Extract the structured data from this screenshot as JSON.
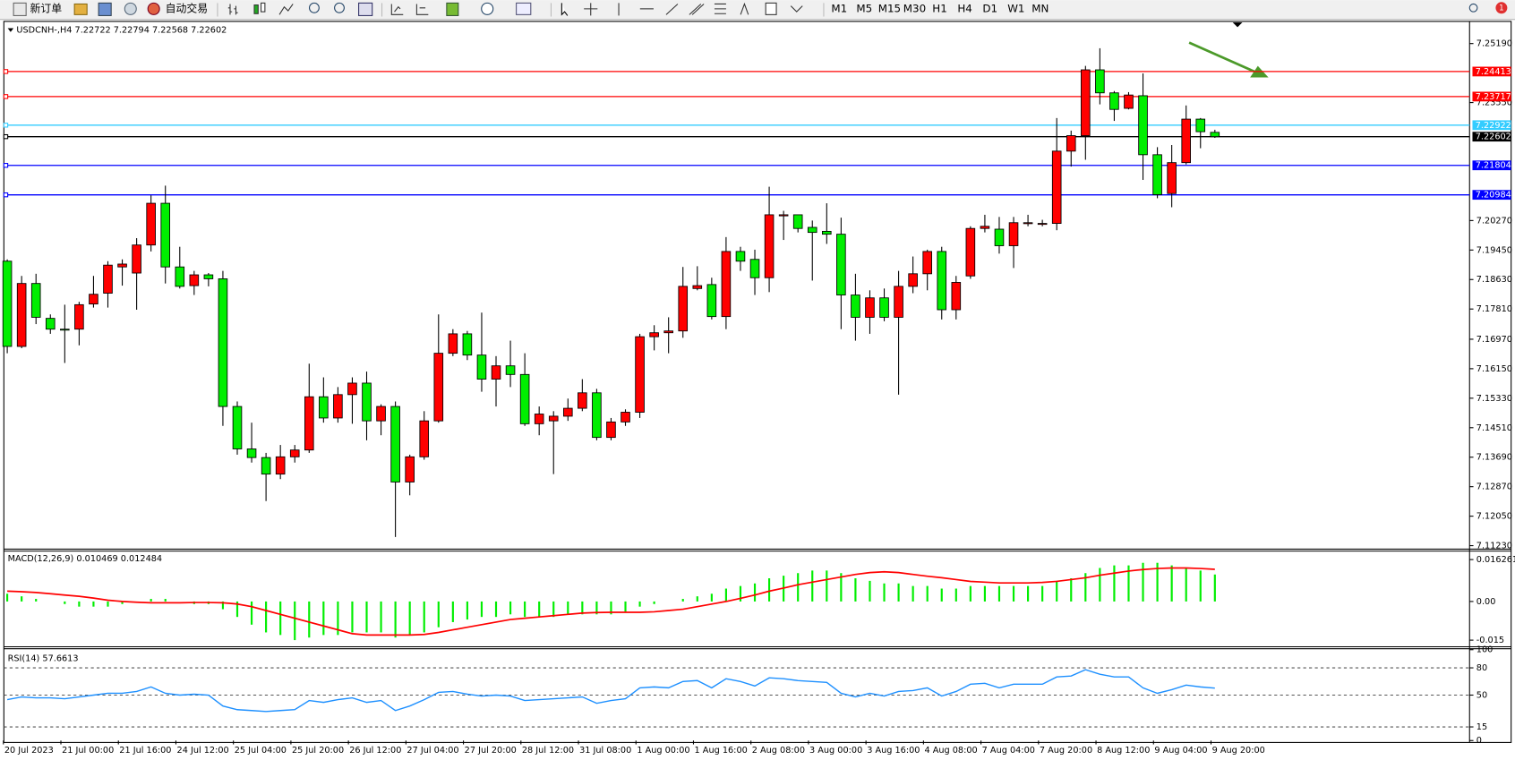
{
  "toolbar": {
    "new_order": "新订单",
    "auto_trading": "自动交易",
    "timeframes": [
      "M1",
      "M5",
      "M15",
      "M30",
      "H1",
      "H4",
      "D1",
      "W1",
      "MN"
    ],
    "alerts": 1
  },
  "chart_data": [
    {
      "type": "candlestick",
      "title": "USDCNH-,H4 7.22722 7.22794 7.22568 7.22602",
      "categories": [
        "20 Jul 2023",
        null,
        null,
        null,
        "21 Jul 00:00",
        null,
        null,
        null,
        "21 Jul 16:00",
        null,
        null,
        null,
        "24 Jul 12:00",
        null,
        null,
        null,
        "25 Jul 04:00",
        null,
        null,
        null,
        "25 Jul 20:00",
        null,
        null,
        null,
        "26 Jul 12:00",
        null,
        null,
        null,
        "27 Jul 04:00",
        null,
        null,
        null,
        "27 Jul 20:00",
        null,
        null,
        null,
        "28 Jul 12:00",
        null,
        null,
        null,
        "31 Jul 08:00",
        null,
        null,
        null,
        "1 Aug 00:00",
        null,
        null,
        null,
        "1 Aug 16:00",
        null,
        null,
        null,
        "2 Aug 08:00",
        null,
        null,
        null,
        "3 Aug 00:00",
        null,
        null,
        null,
        "3 Aug 16:00",
        null,
        null,
        null,
        "4 Aug 08:00",
        null,
        null,
        null,
        "7 Aug 04:00",
        null,
        null,
        null,
        "7 Aug 20:00",
        null,
        null,
        null,
        "8 Aug 12:00",
        null,
        null,
        null,
        "9 Aug 04:00",
        null,
        null,
        null,
        "9 Aug 20:00"
      ],
      "open": [
        7.1914,
        7.1677,
        7.1852,
        7.1755,
        7.1725,
        7.1725,
        7.1795,
        7.1825,
        7.1898,
        7.1881,
        7.1959,
        7.2075,
        7.1898,
        7.1846,
        7.1876,
        7.1865,
        7.151,
        7.1392,
        7.1368,
        7.1322,
        7.137,
        7.1389,
        7.1537,
        7.1478,
        7.1543,
        7.1575,
        7.147,
        7.151,
        7.13,
        7.137,
        7.147,
        7.1658,
        7.1712,
        7.1653,
        7.1586,
        7.1623,
        7.1599,
        7.1462,
        7.147,
        7.1483,
        7.1505,
        7.1548,
        7.1424,
        7.1467,
        7.1494,
        7.1704,
        7.1715,
        7.172,
        7.1838,
        7.1849,
        7.176,
        7.1941,
        7.1919,
        7.1868,
        7.204,
        7.2043,
        7.2008,
        7.1997,
        7.1989,
        7.182,
        7.1758,
        7.1812,
        7.1758,
        7.1844,
        7.1879,
        7.1941,
        7.1779,
        7.1873,
        7.2005,
        7.2003,
        7.1957,
        7.2019,
        7.2019,
        7.2019,
        7.222,
        7.2263,
        7.2446,
        7.2382,
        7.2339,
        7.2374,
        7.221,
        7.2102,
        7.2188,
        7.2309,
        7.22722
      ],
      "high": [
        7.1919,
        7.1873,
        7.1879,
        7.1766,
        7.1793,
        7.1801,
        7.1873,
        7.1914,
        7.1919,
        7.1978,
        7.2097,
        7.2124,
        7.1954,
        7.1887,
        7.1881,
        7.1887,
        7.1524,
        7.1465,
        7.1381,
        7.1403,
        7.1403,
        7.1629,
        7.1591,
        7.1564,
        7.1591,
        7.1607,
        7.1516,
        7.1524,
        7.1376,
        7.1497,
        7.1766,
        7.1725,
        7.172,
        7.1771,
        7.165,
        7.1693,
        7.1658,
        7.151,
        7.1497,
        7.1532,
        7.1586,
        7.1559,
        7.1478,
        7.1502,
        7.1712,
        7.1736,
        7.1758,
        7.1898,
        7.19,
        7.1868,
        7.1981,
        7.1954,
        7.1946,
        7.2121,
        7.2054,
        7.2043,
        7.2027,
        7.2075,
        7.2035,
        7.1879,
        7.1833,
        7.1838,
        7.1887,
        7.1927,
        7.1946,
        7.1954,
        7.1873,
        7.2011,
        7.2043,
        7.2037,
        7.2037,
        7.2043,
        7.2029,
        7.2312,
        7.2277,
        7.2457,
        7.2506,
        7.2387,
        7.2384,
        7.2436,
        7.2231,
        7.2237,
        7.2347,
        7.2312,
        7.22794
      ],
      "low": [
        7.1658,
        7.1672,
        7.1739,
        7.1712,
        7.1631,
        7.168,
        7.1785,
        7.1785,
        7.1846,
        7.1779,
        7.1941,
        7.1852,
        7.1838,
        7.182,
        7.1844,
        7.1456,
        7.1376,
        7.1354,
        7.1247,
        7.1308,
        7.1354,
        7.1381,
        7.1465,
        7.1465,
        7.1462,
        7.1416,
        7.143,
        7.1147,
        7.1263,
        7.1362,
        7.1465,
        7.165,
        7.1639,
        7.1551,
        7.151,
        7.1564,
        7.1456,
        7.143,
        7.1322,
        7.147,
        7.1497,
        7.1416,
        7.1416,
        7.1456,
        7.1478,
        7.1666,
        7.1658,
        7.1701,
        7.1833,
        7.1752,
        7.1725,
        7.1887,
        7.182,
        7.1828,
        7.1973,
        7.1994,
        7.186,
        7.1962,
        7.1725,
        7.1693,
        7.1712,
        7.1747,
        7.1543,
        7.1825,
        7.1833,
        7.1752,
        7.1752,
        7.1865,
        7.1994,
        7.1935,
        7.1895,
        7.2011,
        7.2011,
        7.2,
        7.2177,
        7.2196,
        7.235,
        7.2304,
        7.2336,
        7.214,
        7.2089,
        7.2064,
        7.2183,
        7.2228,
        7.22568
      ],
      "close": [
        7.1677,
        7.1852,
        7.1758,
        7.1725,
        7.1723,
        7.1793,
        7.1822,
        7.1903,
        7.1906,
        7.1959,
        7.2075,
        7.1898,
        7.1844,
        7.1876,
        7.1865,
        7.151,
        7.1392,
        7.1368,
        7.1322,
        7.137,
        7.1389,
        7.1537,
        7.1478,
        7.1543,
        7.1575,
        7.147,
        7.151,
        7.13,
        7.137,
        7.147,
        7.1658,
        7.1712,
        7.1653,
        7.1586,
        7.1623,
        7.1599,
        7.1462,
        7.1489,
        7.1483,
        7.1505,
        7.1548,
        7.1424,
        7.1467,
        7.1494,
        7.1704,
        7.1715,
        7.172,
        7.1844,
        7.1846,
        7.176,
        7.1941,
        7.1914,
        7.1868,
        7.2043,
        7.2043,
        7.2005,
        7.1994,
        7.1989,
        7.182,
        7.1758,
        7.1812,
        7.1758,
        7.1844,
        7.1879,
        7.1941,
        7.1779,
        7.1855,
        7.2005,
        7.2011,
        7.1957,
        7.2021,
        7.2021,
        7.2019,
        7.222,
        7.2263,
        7.2446,
        7.2382,
        7.2336,
        7.2376,
        7.221,
        7.2099,
        7.2188,
        7.2309,
        7.2274,
        7.22602
      ],
      "up_color": "#ff0000",
      "down_color": "#00ee00",
      "ylim": [
        7.1116,
        7.2578
      ],
      "yticks": [
        {
          "value": 7.2519,
          "label": "7.25190"
        },
        {
          "value": 7.2355,
          "label": "7.23550"
        },
        {
          "value": 7.2027,
          "label": "7.20270"
        },
        {
          "value": 7.1945,
          "label": "7.19450"
        },
        {
          "value": 7.1863,
          "label": "7.18630"
        },
        {
          "value": 7.1781,
          "label": "7.17810"
        },
        {
          "value": 7.1697,
          "label": "7.16970"
        },
        {
          "value": 7.1615,
          "label": "7.16150"
        },
        {
          "value": 7.1533,
          "label": "7.15330"
        },
        {
          "value": 7.1451,
          "label": "7.14510"
        },
        {
          "value": 7.1369,
          "label": "7.13690"
        },
        {
          "value": 7.1287,
          "label": "7.12870"
        },
        {
          "value": 7.1205,
          "label": "7.12050"
        },
        {
          "value": 7.1123,
          "label": "7.11230"
        }
      ],
      "levels": [
        {
          "value": 7.24413,
          "color": "#ff0000"
        },
        {
          "value": 7.23717,
          "color": "#ff0000"
        },
        {
          "value": 7.22922,
          "color": "#33ccff"
        },
        {
          "value": 7.22602,
          "color": "#000000"
        },
        {
          "value": 7.21804,
          "color": "#0000ff"
        },
        {
          "value": 7.20984,
          "color": "#0000ff"
        }
      ]
    },
    {
      "type": "macd",
      "title": "MACD(12,26,9) 0.010469 0.012484",
      "histogram": {
        "color": "#00ee00",
        "values": [
          0.003,
          0.002,
          0.001,
          0,
          -0.001,
          -0.002,
          -0.002,
          -0.002,
          -0.001,
          0,
          0.001,
          0.001,
          0,
          -0.001,
          -0.001,
          -0.003,
          -0.006,
          -0.009,
          -0.012,
          -0.013,
          -0.015,
          -0.014,
          -0.013,
          -0.013,
          -0.012,
          -0.012,
          -0.012,
          -0.014,
          -0.013,
          -0.012,
          -0.01,
          -0.008,
          -0.007,
          -0.006,
          -0.006,
          -0.005,
          -0.006,
          -0.006,
          -0.006,
          -0.005,
          -0.005,
          -0.005,
          -0.005,
          -0.004,
          -0.002,
          -0.001,
          0,
          0.001,
          0.002,
          0.003,
          0.005,
          0.006,
          0.007,
          0.009,
          0.01,
          0.011,
          0.012,
          0.012,
          0.011,
          0.009,
          0.008,
          0.007,
          0.007,
          0.006,
          0.006,
          0.005,
          0.005,
          0.006,
          0.006,
          0.006,
          0.006,
          0.006,
          0.006,
          0.008,
          0.009,
          0.011,
          0.013,
          0.014,
          0.014,
          0.015,
          0.015,
          0.014,
          0.013,
          0.012,
          0.010469
        ]
      },
      "signal": {
        "color": "#ff0000",
        "values": [
          0.004,
          0.0038,
          0.0035,
          0.003,
          0.0025,
          0.002,
          0.0013,
          0.0005,
          0,
          -0.0003,
          -0.0005,
          -0.0005,
          -0.0005,
          -0.0004,
          -0.0004,
          -0.0005,
          -0.001,
          -0.002,
          -0.0035,
          -0.005,
          -0.0065,
          -0.008,
          -0.0095,
          -0.011,
          -0.0125,
          -0.013,
          -0.013,
          -0.013,
          -0.013,
          -0.0128,
          -0.012,
          -0.011,
          -0.01,
          -0.009,
          -0.008,
          -0.007,
          -0.0065,
          -0.006,
          -0.0055,
          -0.005,
          -0.0045,
          -0.0043,
          -0.0042,
          -0.0042,
          -0.0042,
          -0.004,
          -0.0035,
          -0.003,
          -0.002,
          -0.001,
          0,
          0.0012,
          0.0025,
          0.004,
          0.0052,
          0.0065,
          0.0075,
          0.0085,
          0.0095,
          0.0105,
          0.0112,
          0.0115,
          0.0112,
          0.0105,
          0.0098,
          0.0092,
          0.0085,
          0.0078,
          0.0075,
          0.0072,
          0.0072,
          0.0072,
          0.0074,
          0.0078,
          0.0085,
          0.0092,
          0.0102,
          0.011,
          0.0118,
          0.0124,
          0.0128,
          0.013,
          0.013,
          0.0128,
          0.012484
        ]
      },
      "ylim": [
        -0.0172,
        0.0188
      ],
      "yticks": [
        0.016261,
        {
          "value": 0,
          "label": "0.00"
        },
        -0.015
      ]
    },
    {
      "type": "line",
      "title": "RSI(14) 57.6613",
      "color": "#1e90ff",
      "values": [
        45,
        48,
        47,
        47,
        46,
        48,
        50,
        52,
        52,
        54,
        59,
        52,
        50,
        51,
        50,
        38,
        34,
        33,
        32,
        33,
        34,
        44,
        42,
        45,
        47,
        42,
        44,
        33,
        38,
        45,
        53,
        54,
        51,
        49,
        50,
        49,
        44,
        45,
        46,
        47,
        48,
        41,
        44,
        46,
        58,
        59,
        58,
        65,
        66,
        58,
        68,
        65,
        60,
        69,
        68,
        66,
        65,
        64,
        52,
        48,
        52,
        49,
        54,
        55,
        58,
        49,
        54,
        62,
        63,
        58,
        62,
        62,
        62,
        70,
        71,
        78,
        73,
        70,
        70,
        58,
        52,
        56,
        61,
        59,
        57.6613
      ],
      "ylim": [
        0,
        100
      ],
      "yticks": [
        100,
        80,
        50,
        15,
        0
      ],
      "grid": "dashed"
    }
  ]
}
